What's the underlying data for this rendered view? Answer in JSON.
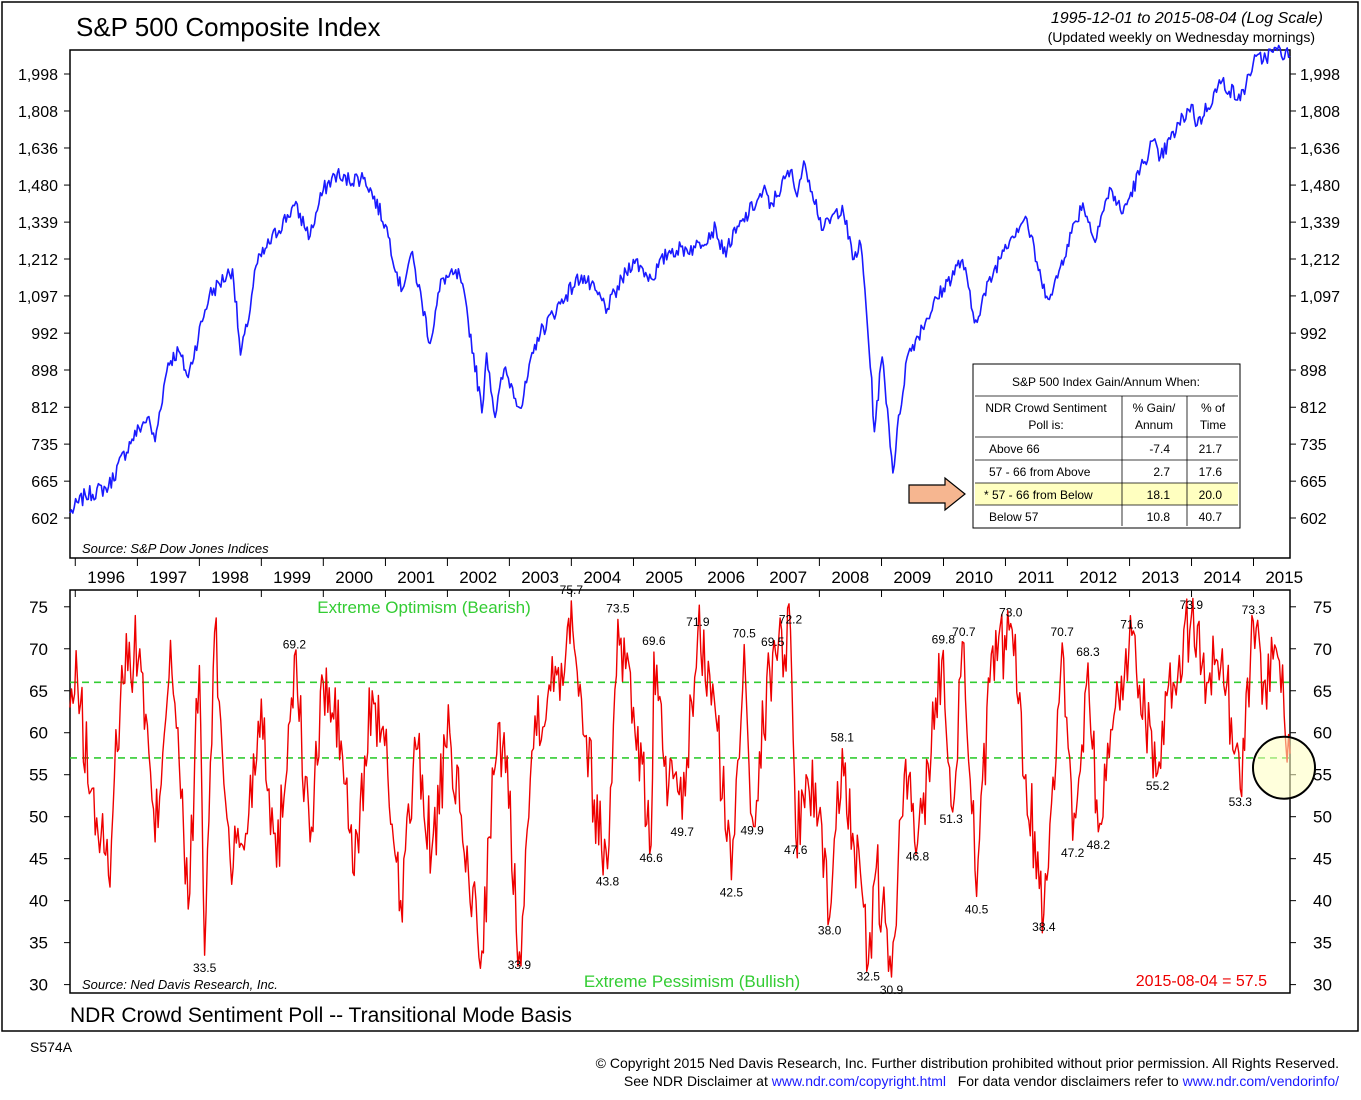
{
  "chart_data": [
    {
      "type": "line",
      "title": "S&P 500 Composite Index",
      "subtitle": "1995-12-01 to 2015-08-04 (Log Scale)",
      "subtitle2": "(Updated weekly on Wednesday mornings)",
      "source": "Source:  S&P Dow Jones Indices",
      "y_scale": "log",
      "y_ticks": [
        602,
        665,
        735,
        812,
        898,
        992,
        1097,
        1212,
        1339,
        1480,
        1636,
        1808,
        1998
      ],
      "y_tick_labels": [
        "602",
        "665",
        "735",
        "812",
        "898",
        "992",
        "1,097",
        "1,212",
        "1,339",
        "1,480",
        "1,636",
        "1,808",
        "1,998"
      ],
      "x_tick_labels": [
        "1996",
        "1997",
        "1998",
        "1999",
        "2000",
        "2001",
        "2002",
        "2003",
        "2004",
        "2005",
        "2006",
        "2007",
        "2008",
        "2009",
        "2010",
        "2011",
        "2012",
        "2013",
        "2014",
        "2015"
      ],
      "x_range": [
        "1995-12-01",
        "2015-08-04"
      ],
      "line_color": "#1a1aff",
      "series": [
        {
          "x": [
            "1995-12-01",
            "1996-03-01",
            "1996-07-15",
            "1996-12-01",
            "1997-03-01",
            "1997-04-15",
            "1997-07-01",
            "1997-09-01",
            "1997-10-27",
            "1998-03-01",
            "1998-07-15",
            "1998-08-31",
            "1998-10-10",
            "1998-12-01",
            "1999-02-01",
            "1999-07-15",
            "1999-10-15",
            "2000-01-01",
            "2000-03-24",
            "2000-04-15",
            "2000-09-01",
            "2001-01-01",
            "2001-04-04",
            "2001-06-01",
            "2001-09-21",
            "2001-12-01",
            "2002-03-15",
            "2002-07-23",
            "2002-08-20",
            "2002-10-09",
            "2002-12-01",
            "2003-03-11",
            "2003-06-15",
            "2003-12-01",
            "2004-03-01",
            "2004-08-01",
            "2004-12-31",
            "2005-04-15",
            "2005-08-01",
            "2005-12-31",
            "2006-05-01",
            "2006-06-13",
            "2006-12-31",
            "2007-02-20",
            "2007-03-13",
            "2007-07-15",
            "2007-08-15",
            "2007-10-09",
            "2008-01-22",
            "2008-05-15",
            "2008-07-15",
            "2008-09-01",
            "2008-11-20",
            "2009-01-05",
            "2009-03-09",
            "2009-06-01",
            "2009-12-31",
            "2010-04-23",
            "2010-07-02",
            "2010-12-31",
            "2011-04-29",
            "2011-08-08",
            "2011-10-03",
            "2011-12-31",
            "2012-04-01",
            "2012-06-04",
            "2012-09-14",
            "2012-11-15",
            "2012-12-31",
            "2013-05-21",
            "2013-06-24",
            "2013-12-31",
            "2014-02-03",
            "2014-06-30",
            "2014-10-15",
            "2014-12-31",
            "2015-05-21",
            "2015-08-04"
          ],
          "y": [
            610,
            640,
            655,
            745,
            790,
            740,
            915,
            945,
            880,
            1100,
            1180,
            935,
            1010,
            1190,
            1250,
            1400,
            1290,
            1460,
            1530,
            1500,
            1510,
            1330,
            1110,
            1230,
            965,
            1150,
            1160,
            800,
            940,
            790,
            900,
            810,
            980,
            1100,
            1160,
            1060,
            1210,
            1150,
            1240,
            1250,
            1320,
            1230,
            1420,
            1460,
            1390,
            1540,
            1450,
            1565,
            1310,
            1400,
            1210,
            1260,
            760,
            930,
            680,
            930,
            1120,
            1210,
            1020,
            1260,
            1360,
            1120,
            1100,
            1260,
            1410,
            1280,
            1465,
            1370,
            1430,
            1670,
            1580,
            1840,
            1740,
            1960,
            1860,
            2060,
            2130,
            2098
          ]
        }
      ],
      "legend_table": {
        "title": "S&P 500 Index Gain/Annum When:",
        "columns": [
          "NDR Crowd Sentiment Poll is:",
          "% Gain/ Annum",
          "% of Time"
        ],
        "rows": [
          {
            "label": "Above 66",
            "gain": "-7.4",
            "time": "21.7"
          },
          {
            "label": "57 - 66 from Above",
            "gain": "2.7",
            "time": "17.6"
          },
          {
            "label": "* 57 - 66 from Below",
            "gain": "18.1",
            "time": "20.0"
          },
          {
            "label": "Below 57",
            "gain": "10.8",
            "time": "40.7"
          }
        ],
        "highlighted_row": 2,
        "highlight_color": "#ffffc0",
        "arrow_color": "#f6b690"
      }
    },
    {
      "type": "line",
      "title": "NDR Crowd Sentiment Poll -- Transitional Mode Basis",
      "source": "Source:  Ned Davis Research, Inc.",
      "ylim": [
        29,
        77
      ],
      "y_ticks": [
        30,
        35,
        40,
        45,
        50,
        55,
        60,
        65,
        70,
        75
      ],
      "reference_lines": [
        {
          "y": 66,
          "label": "Extreme Optimism (Bearish)"
        },
        {
          "y": 57,
          "label": "Extreme Pessimism (Bullish)"
        }
      ],
      "reference_color": "#33cc33",
      "line_color": "#ee0000",
      "latest_reading": "2015-08-04 = 57.5",
      "highlight_circle_color": "#ffffc0",
      "annotations": [
        {
          "x": "1999-07-15",
          "y": 69.2,
          "label": "69.2",
          "pos": "above"
        },
        {
          "x": "1998-02-01",
          "y": 33.5,
          "label": "33.5",
          "pos": "below"
        },
        {
          "x": "2003-03-01",
          "y": 33.9,
          "label": "33.9",
          "pos": "below"
        },
        {
          "x": "2004-01-01",
          "y": 75.7,
          "label": "75.7",
          "pos": "above"
        },
        {
          "x": "2004-10-01",
          "y": 73.5,
          "label": "73.5",
          "pos": "above"
        },
        {
          "x": "2004-08-01",
          "y": 43.8,
          "label": "43.8",
          "pos": "below"
        },
        {
          "x": "2005-05-01",
          "y": 69.6,
          "label": "69.6",
          "pos": "above"
        },
        {
          "x": "2005-04-15",
          "y": 46.6,
          "label": "46.6",
          "pos": "below"
        },
        {
          "x": "2006-01-15",
          "y": 71.9,
          "label": "71.9",
          "pos": "above"
        },
        {
          "x": "2005-10-15",
          "y": 49.7,
          "label": "49.7",
          "pos": "below"
        },
        {
          "x": "2006-08-01",
          "y": 42.5,
          "label": "42.5",
          "pos": "below"
        },
        {
          "x": "2006-10-15",
          "y": 70.5,
          "label": "70.5",
          "pos": "above"
        },
        {
          "x": "2007-04-01",
          "y": 69.5,
          "label": "69.5",
          "pos": "above"
        },
        {
          "x": "2006-12-01",
          "y": 49.9,
          "label": "49.9",
          "pos": "below"
        },
        {
          "x": "2007-07-15",
          "y": 72.2,
          "label": "72.2",
          "pos": "above"
        },
        {
          "x": "2007-08-15",
          "y": 47.6,
          "label": "47.6",
          "pos": "below"
        },
        {
          "x": "2008-05-15",
          "y": 58.1,
          "label": "58.1",
          "pos": "above"
        },
        {
          "x": "2008-03-01",
          "y": 38.0,
          "label": "38.0",
          "pos": "below"
        },
        {
          "x": "2008-10-15",
          "y": 32.5,
          "label": "32.5",
          "pos": "below"
        },
        {
          "x": "2009-03-01",
          "y": 30.9,
          "label": "30.9",
          "pos": "below"
        },
        {
          "x": "2009-08-01",
          "y": 46.8,
          "label": "46.8",
          "pos": "below"
        },
        {
          "x": "2009-12-31",
          "y": 69.8,
          "label": "69.8",
          "pos": "above"
        },
        {
          "x": "2010-05-01",
          "y": 70.7,
          "label": "70.7",
          "pos": "above"
        },
        {
          "x": "2010-02-15",
          "y": 51.3,
          "label": "51.3",
          "pos": "below"
        },
        {
          "x": "2010-07-15",
          "y": 40.5,
          "label": "40.5",
          "pos": "below"
        },
        {
          "x": "2011-02-01",
          "y": 73.0,
          "label": "73.0",
          "pos": "above"
        },
        {
          "x": "2011-12-01",
          "y": 70.7,
          "label": "70.7",
          "pos": "above"
        },
        {
          "x": "2011-08-15",
          "y": 38.4,
          "label": "38.4",
          "pos": "below"
        },
        {
          "x": "2012-05-01",
          "y": 68.3,
          "label": "68.3",
          "pos": "above"
        },
        {
          "x": "2012-02-01",
          "y": 47.2,
          "label": "47.2",
          "pos": "below"
        },
        {
          "x": "2012-07-01",
          "y": 48.2,
          "label": "48.2",
          "pos": "below"
        },
        {
          "x": "2013-01-15",
          "y": 71.6,
          "label": "71.6",
          "pos": "above"
        },
        {
          "x": "2013-06-15",
          "y": 55.2,
          "label": "55.2",
          "pos": "below"
        },
        {
          "x": "2013-12-31",
          "y": 73.9,
          "label": "73.9",
          "pos": "above"
        },
        {
          "x": "2014-10-15",
          "y": 53.3,
          "label": "53.3",
          "pos": "below"
        },
        {
          "x": "2014-12-31",
          "y": 73.3,
          "label": "73.3",
          "pos": "above"
        }
      ],
      "series": [
        {
          "x": [
            "1995-12-01",
            "1996-01-15",
            "1996-04-01",
            "1996-07-15",
            "1996-10-01",
            "1997-01-15",
            "1997-04-15",
            "1997-07-15",
            "1997-10-27",
            "1998-01-01",
            "1998-02-01",
            "1998-04-01",
            "1998-07-01",
            "1998-10-01",
            "1999-01-01",
            "1999-04-01",
            "1999-07-15",
            "1999-10-15",
            "2000-01-01",
            "2000-04-15",
            "2000-07-01",
            "2000-10-15",
            "2001-01-15",
            "2001-04-01",
            "2001-07-01",
            "2001-10-01",
            "2002-01-15",
            "2002-04-01",
            "2002-07-23",
            "2002-10-01",
            "2002-12-01",
            "2003-03-01",
            "2003-06-01",
            "2003-09-01",
            "2003-12-01",
            "2004-01-01",
            "2004-03-01",
            "2004-05-15",
            "2004-08-01",
            "2004-10-01",
            "2005-01-01",
            "2005-04-15",
            "2005-05-01",
            "2005-07-01",
            "2005-10-15",
            "2006-01-15",
            "2006-05-01",
            "2006-08-01",
            "2006-10-15",
            "2006-12-01",
            "2007-04-01",
            "2007-07-15",
            "2007-08-15",
            "2007-10-15",
            "2008-01-15",
            "2008-03-01",
            "2008-05-15",
            "2008-07-15",
            "2008-10-15",
            "2008-12-01",
            "2009-03-01",
            "2009-05-15",
            "2009-08-01",
            "2009-12-31",
            "2010-02-15",
            "2010-05-01",
            "2010-07-15",
            "2010-10-01",
            "2011-02-01",
            "2011-05-01",
            "2011-08-15",
            "2011-12-01",
            "2012-02-01",
            "2012-05-01",
            "2012-07-01",
            "2012-10-01",
            "2013-01-15",
            "2013-06-15",
            "2013-09-15",
            "2013-12-31",
            "2014-04-01",
            "2014-07-01",
            "2014-10-15",
            "2014-12-31",
            "2015-03-01",
            "2015-05-15",
            "2015-07-01",
            "2015-08-04"
          ],
          "y": [
            63,
            66,
            53,
            43,
            68,
            70,
            47,
            71,
            39,
            68,
            33.5,
            72,
            45,
            48,
            64,
            44,
            69.2,
            47,
            66,
            59,
            43,
            65,
            55,
            40,
            58,
            46,
            60,
            47,
            34,
            55,
            60,
            33.9,
            62,
            65,
            70,
            75.7,
            64,
            52,
            43.8,
            73.5,
            63,
            46.6,
            69.6,
            56,
            49.7,
            71.9,
            62,
            42.5,
            70.5,
            49.9,
            69.5,
            72.2,
            47.6,
            55,
            49,
            38,
            58.1,
            48,
            32.5,
            44,
            30.9,
            55,
            46.8,
            69.8,
            51.3,
            70.7,
            40.5,
            66,
            73,
            55,
            38.4,
            70.7,
            47.2,
            68.3,
            48.2,
            62,
            71.6,
            55.2,
            66,
            73.9,
            66,
            70,
            53.3,
            73.3,
            66,
            70,
            62,
            57.5
          ]
        }
      ]
    }
  ],
  "bottom_title": "NDR Crowd Sentiment Poll -- Transitional Mode Basis",
  "code": "S574A",
  "footer": {
    "line1": "© Copyright 2015 Ned Davis Research, Inc. Further distribution prohibited without prior permission. All Rights Reserved.",
    "line2_prefix": "See NDR Disclaimer at",
    "link1": "www.ndr.com/copyright.html",
    "line2_mid": "For data vendor disclaimers refer to",
    "link2": "www.ndr.com/vendorinfo/"
  }
}
